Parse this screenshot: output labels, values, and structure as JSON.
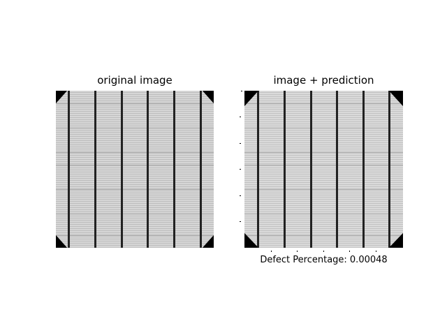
{
  "panels": [
    {
      "title": "original image"
    },
    {
      "title": "image + prediction"
    }
  ],
  "caption": {
    "label": "Defect Percentage",
    "value": "0.00048",
    "text": "Defect Percentage: 0.00048"
  },
  "cell": {
    "busbar_count": 6,
    "colors": {
      "background": "#000000",
      "cell_light": "#d8d8d8",
      "cell_mid": "#c4c4c4",
      "busbar": "#202020",
      "finger": "#9a9a9a"
    }
  }
}
